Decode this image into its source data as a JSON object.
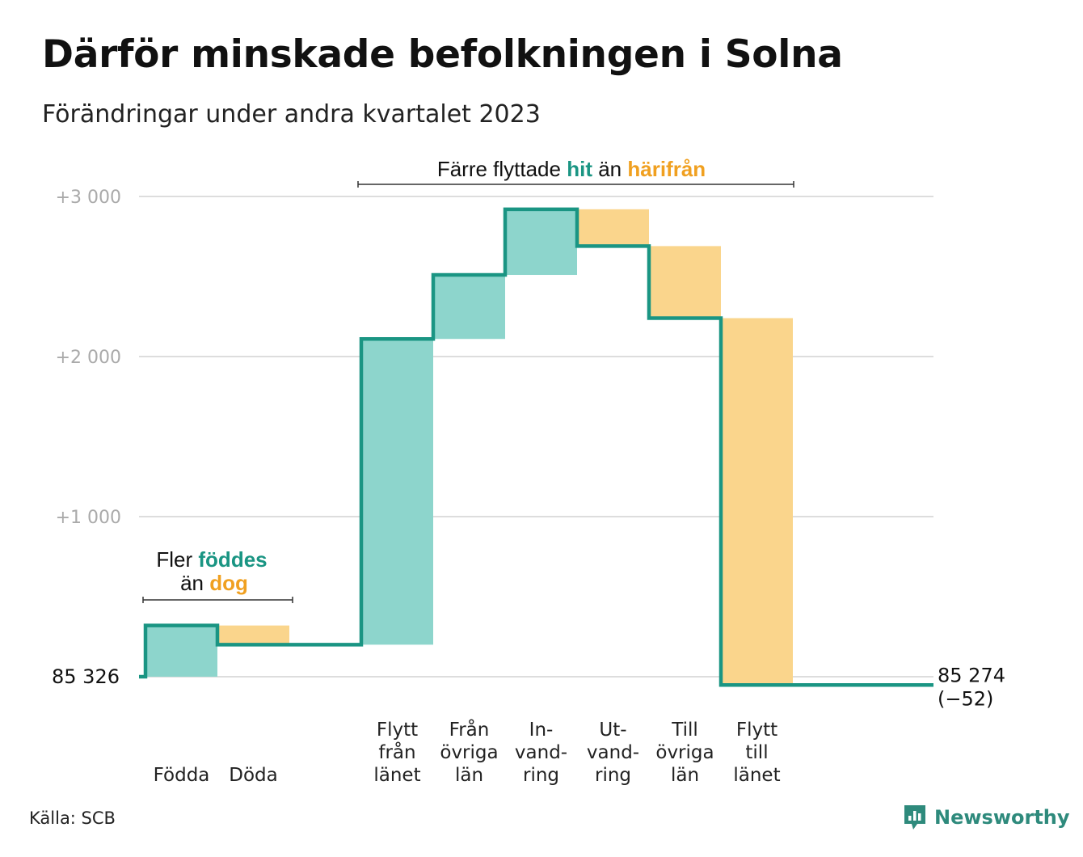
{
  "title": "Därför minskade befolkningen i Solna",
  "subtitle": "Förändringar under andra kvartalet 2023",
  "source": "Källa: SCB",
  "brand": "Newsworthy",
  "colors": {
    "increase": "#8dd5cc",
    "decrease": "#fad58c",
    "line": "#1a9583",
    "hit": "#1a9583",
    "harifran": "#f0a020",
    "grid": "#dddddd"
  },
  "annotations": {
    "births": {
      "pre": "Fler",
      "hl1": "föddes",
      "mid": "än",
      "hl2": "dog"
    },
    "moves": {
      "pre": "Färre flyttade",
      "hl1": "hit",
      "mid": "än",
      "hl2": "härifrån"
    }
  },
  "chart_data": {
    "type": "waterfall",
    "baseline": 85326,
    "baseline_label": "85  326",
    "end_value": 85274,
    "end_label": "85 274",
    "change_label": "(−52)",
    "yticks": [
      {
        "value": 3000,
        "label": "+3  000"
      },
      {
        "value": 2000,
        "label": "+2  000"
      },
      {
        "value": 1000,
        "label": "+1  000"
      }
    ],
    "steps": [
      {
        "label": [
          "",
          "",
          "Födda"
        ],
        "value": 320,
        "kind": "increase"
      },
      {
        "label": [
          "",
          "",
          "Döda"
        ],
        "value": -120,
        "kind": "decrease"
      },
      {
        "label": [
          "",
          "",
          ""
        ],
        "value": 0,
        "kind": "spacer"
      },
      {
        "label": [
          "Flytt",
          "från",
          "länet"
        ],
        "value": 1910,
        "kind": "increase"
      },
      {
        "label": [
          "Från",
          "övriga",
          "län"
        ],
        "value": 400,
        "kind": "increase"
      },
      {
        "label": [
          "In-",
          "vand-",
          "ring"
        ],
        "value": 410,
        "kind": "increase"
      },
      {
        "label": [
          "Ut-",
          "vand-",
          "ring"
        ],
        "value": -230,
        "kind": "decrease"
      },
      {
        "label": [
          "Till",
          "övriga",
          "län"
        ],
        "value": -450,
        "kind": "decrease"
      },
      {
        "label": [
          "Flytt",
          "till",
          "länet"
        ],
        "value": -2292,
        "kind": "decrease"
      }
    ],
    "ylim": [
      -60,
      3000
    ],
    "grid": true
  }
}
